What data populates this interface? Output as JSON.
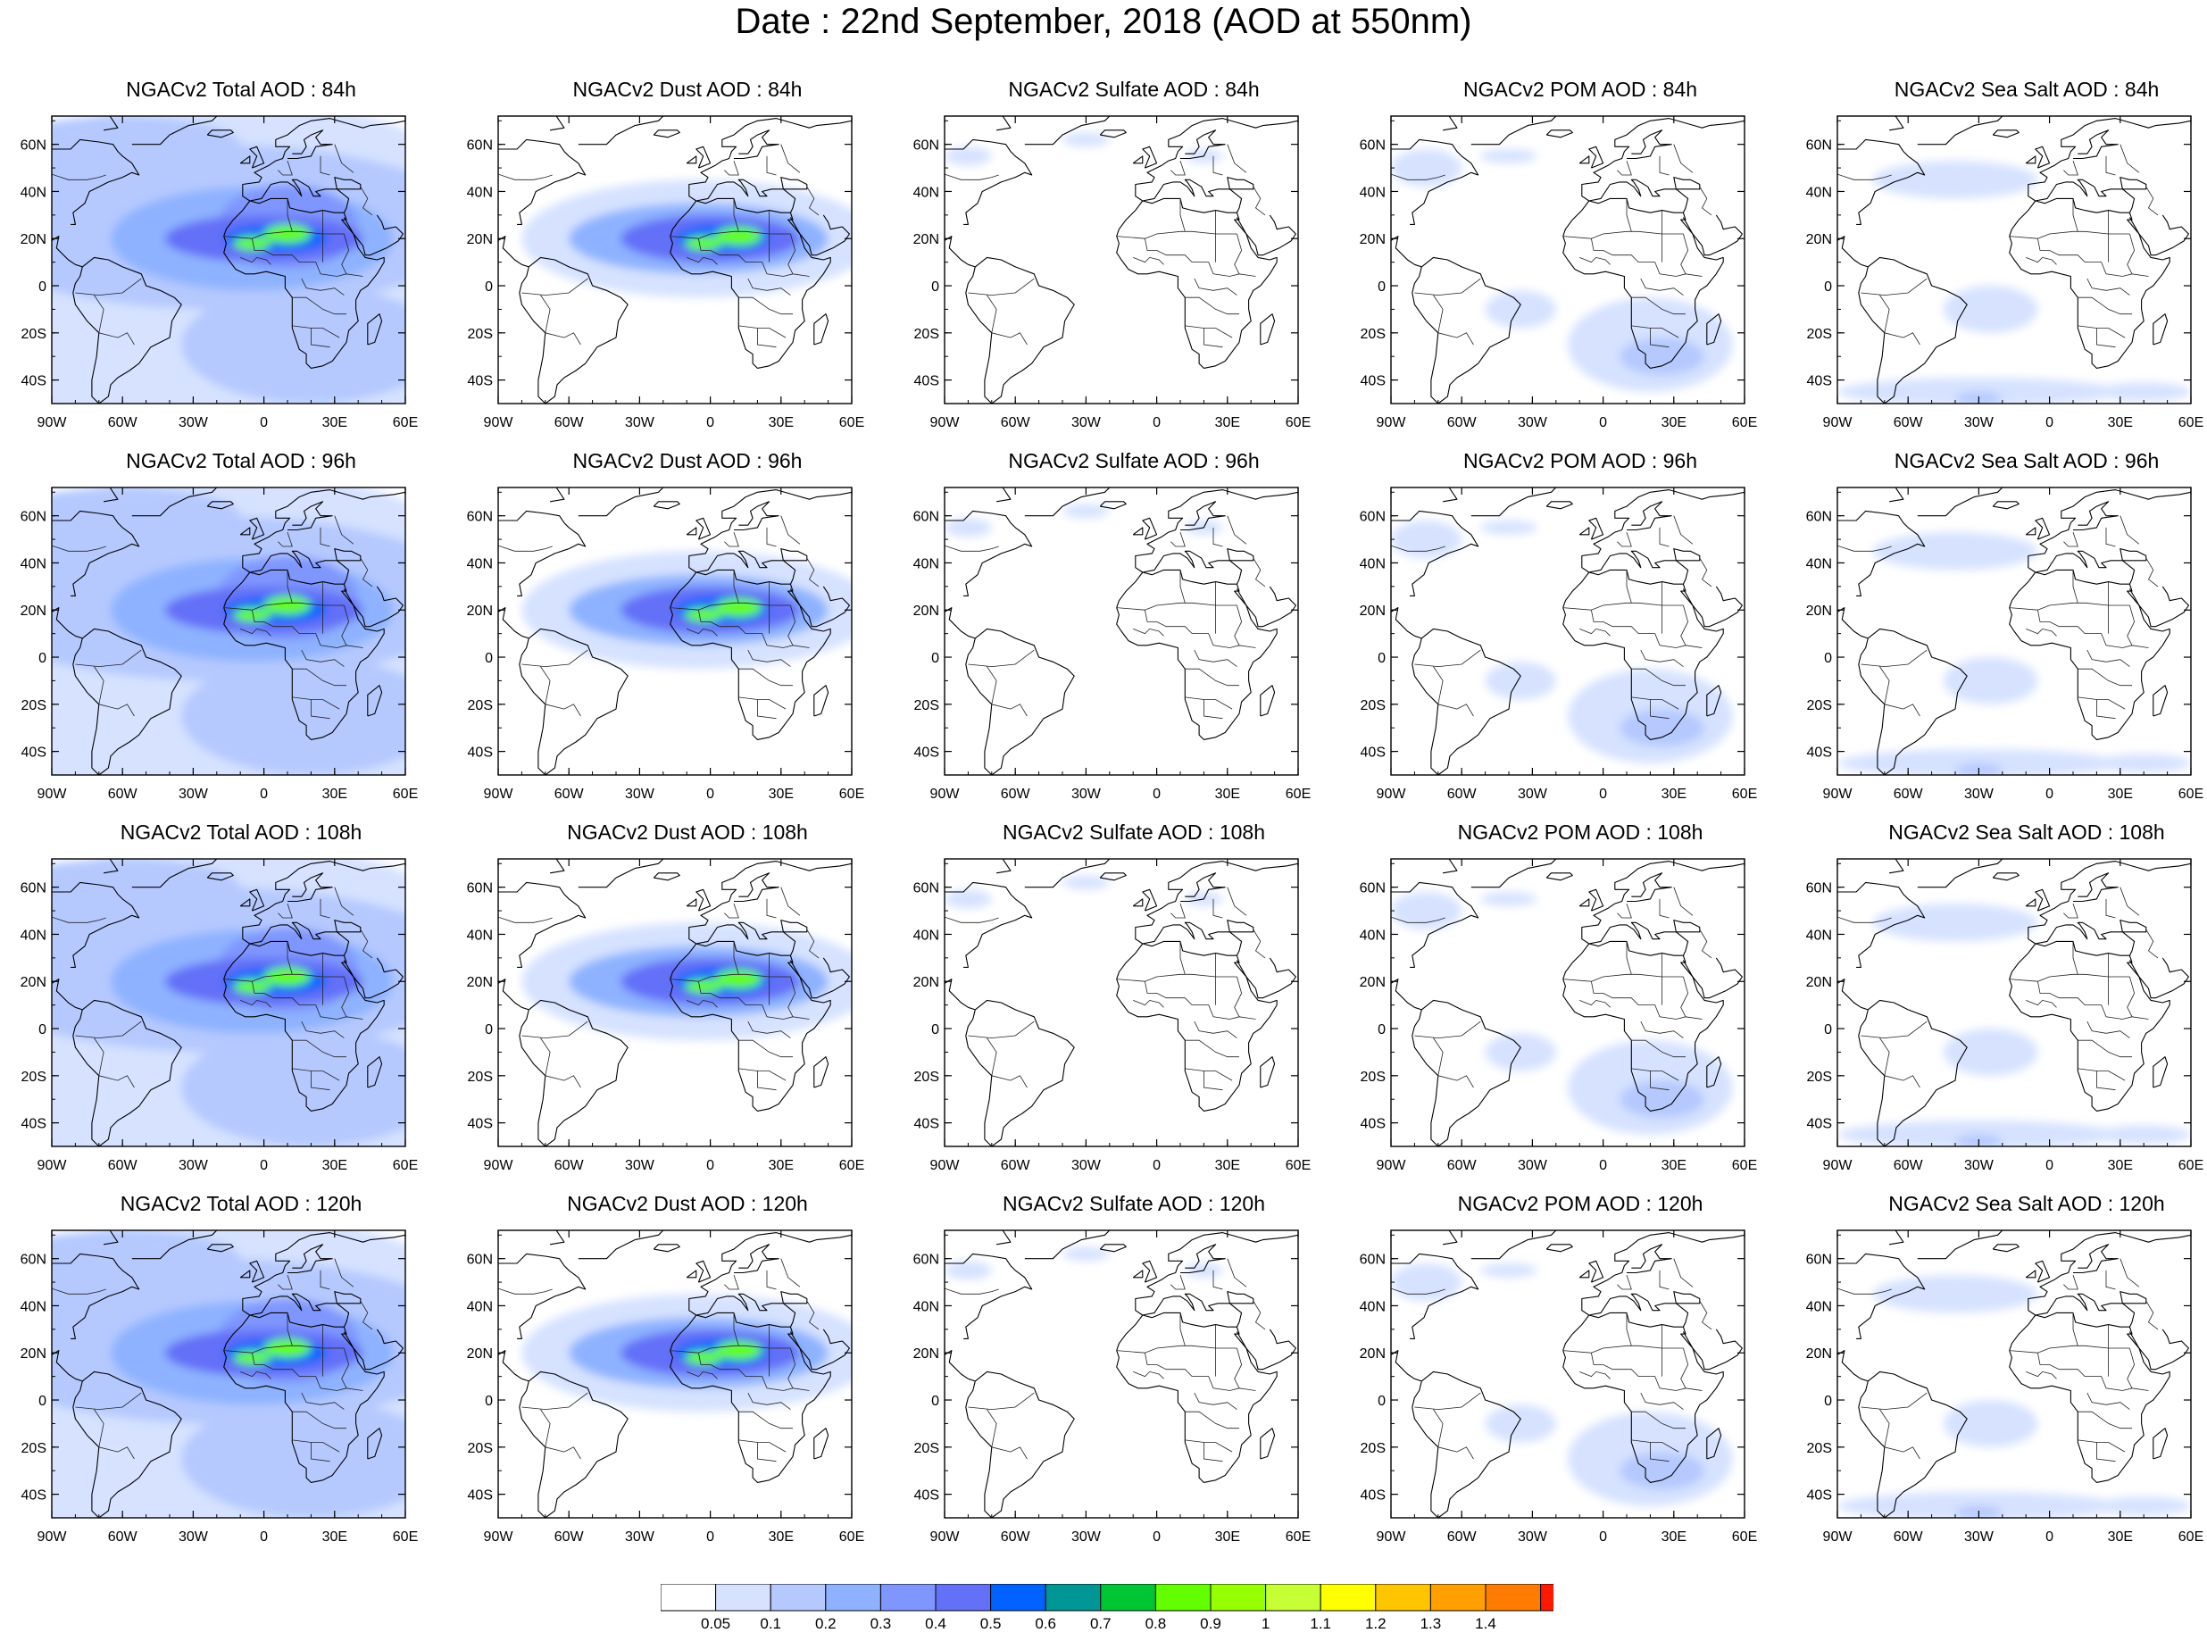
{
  "title": "Date : 22nd September, 2018 (AOD at 550nm)",
  "lat_ticks": [
    "60N",
    "40N",
    "20N",
    "0",
    "20S",
    "40S"
  ],
  "lat_values": [
    60,
    40,
    20,
    0,
    -20,
    -40
  ],
  "lon_ticks": [
    "90W",
    "60W",
    "30W",
    "0",
    "30E",
    "60E"
  ],
  "lon_values": [
    -90,
    -60,
    -30,
    0,
    30,
    60
  ],
  "colorbar": {
    "labels": [
      "0.05",
      "0.1",
      "0.2",
      "0.3",
      "0.4",
      "0.5",
      "0.6",
      "0.7",
      "0.8",
      "0.9",
      "1",
      "1.1",
      "1.2",
      "1.3",
      "1.4"
    ],
    "colors": [
      "#ffffff",
      "#d6e2ff",
      "#b5c9ff",
      "#8eb2ff",
      "#7f96ff",
      "#6370f8",
      "#0063ff",
      "#009696",
      "#00c633",
      "#63ff00",
      "#96ff00",
      "#c6ff33",
      "#ffff00",
      "#ffc600",
      "#ffa000",
      "#ff7c00",
      "#ff1900"
    ]
  },
  "panels": [
    {
      "title": "NGACv2 Total AOD : 84h",
      "kind": "total"
    },
    {
      "title": "NGACv2 Dust AOD : 84h",
      "kind": "dust"
    },
    {
      "title": "NGACv2 Sulfate AOD : 84h",
      "kind": "sulfate"
    },
    {
      "title": "NGACv2 POM AOD : 84h",
      "kind": "pom"
    },
    {
      "title": "NGACv2 Sea Salt AOD : 84h",
      "kind": "seasalt"
    },
    {
      "title": "NGACv2 Total AOD : 96h",
      "kind": "total"
    },
    {
      "title": "NGACv2 Dust AOD : 96h",
      "kind": "dust"
    },
    {
      "title": "NGACv2 Sulfate AOD : 96h",
      "kind": "sulfate"
    },
    {
      "title": "NGACv2 POM AOD : 96h",
      "kind": "pom"
    },
    {
      "title": "NGACv2 Sea Salt AOD : 96h",
      "kind": "seasalt"
    },
    {
      "title": "NGACv2 Total AOD : 108h",
      "kind": "total"
    },
    {
      "title": "NGACv2 Dust AOD : 108h",
      "kind": "dust"
    },
    {
      "title": "NGACv2 Sulfate AOD : 108h",
      "kind": "sulfate"
    },
    {
      "title": "NGACv2 POM AOD : 108h",
      "kind": "pom"
    },
    {
      "title": "NGACv2 Sea Salt AOD : 108h",
      "kind": "seasalt"
    },
    {
      "title": "NGACv2 Total AOD : 120h",
      "kind": "total"
    },
    {
      "title": "NGACv2 Dust AOD : 120h",
      "kind": "dust"
    },
    {
      "title": "NGACv2 Sulfate AOD : 120h",
      "kind": "sulfate"
    },
    {
      "title": "NGACv2 POM AOD : 120h",
      "kind": "pom"
    },
    {
      "title": "NGACv2 Sea Salt  AOD : 120h",
      "kind": "seasalt"
    }
  ]
}
